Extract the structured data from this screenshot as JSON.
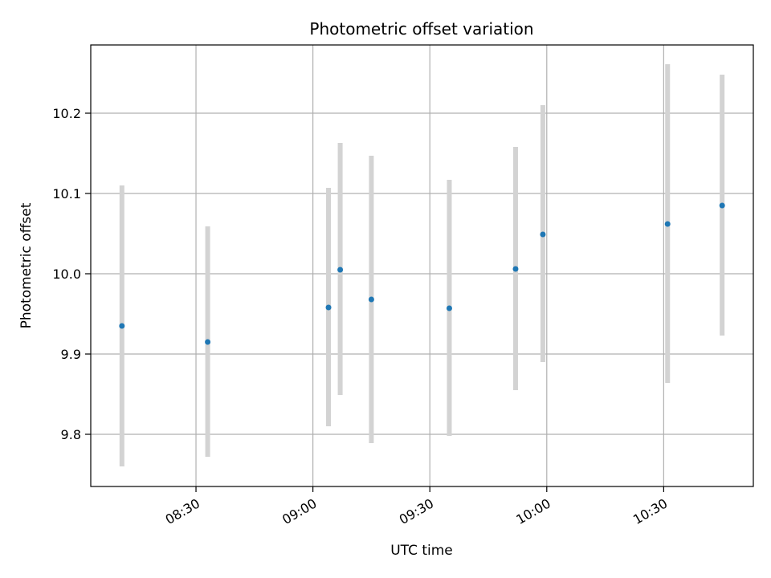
{
  "chart_data": {
    "type": "scatter",
    "title": "Photometric offset variation",
    "xlabel": "UTC time",
    "ylabel": "Photometric offset",
    "x_unit": "UTC time (HH:MM)",
    "xlim": [
      "08:03",
      "10:53"
    ],
    "ylim": [
      9.735,
      10.285
    ],
    "x_ticks": [
      "08:30",
      "09:00",
      "09:30",
      "10:00",
      "10:30"
    ],
    "y_ticks": [
      9.8,
      9.9,
      10.0,
      10.1,
      10.2
    ],
    "grid": true,
    "errorbar_color": "#d3d3d3",
    "marker_color": "#1f77b4",
    "points": [
      {
        "x": "08:11",
        "y": 9.935,
        "low": 9.76,
        "high": 10.11
      },
      {
        "x": "08:33",
        "y": 9.915,
        "low": 9.772,
        "high": 10.059
      },
      {
        "x": "09:04",
        "y": 9.958,
        "low": 9.81,
        "high": 10.107
      },
      {
        "x": "09:07",
        "y": 10.005,
        "low": 9.849,
        "high": 10.163
      },
      {
        "x": "09:15",
        "y": 9.968,
        "low": 9.789,
        "high": 10.147
      },
      {
        "x": "09:35",
        "y": 9.957,
        "low": 9.798,
        "high": 10.117
      },
      {
        "x": "09:52",
        "y": 10.006,
        "low": 9.855,
        "high": 10.158
      },
      {
        "x": "09:59",
        "y": 10.049,
        "low": 9.89,
        "high": 10.21
      },
      {
        "x": "10:31",
        "y": 10.062,
        "low": 9.864,
        "high": 10.261
      },
      {
        "x": "10:45",
        "y": 10.085,
        "low": 9.923,
        "high": 10.248
      }
    ]
  }
}
